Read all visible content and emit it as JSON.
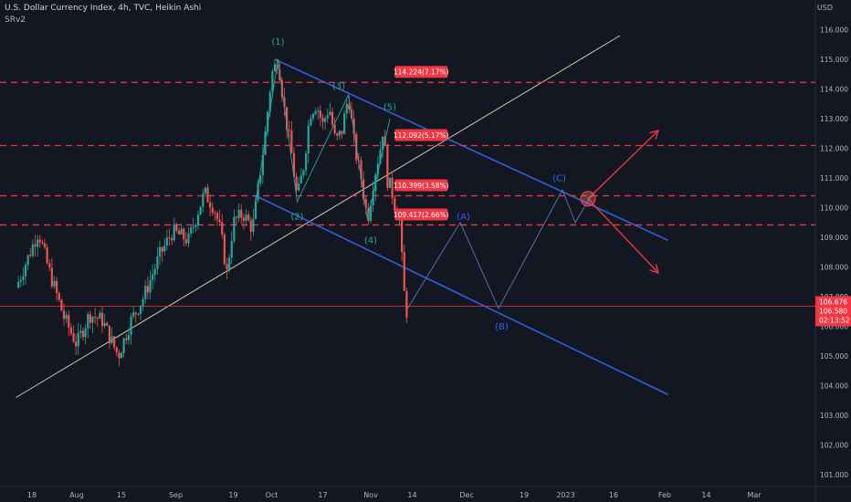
{
  "header": {
    "symbol_line": "U.S. Dollar Currency Index, 4h, TVC, Heikin Ashi",
    "indicator": "SRv2",
    "currency": "USD"
  },
  "chart_data": {
    "type": "candlestick",
    "y_range": [
      100.6,
      117.0
    ],
    "y_ticks": [
      101.0,
      102.0,
      103.0,
      104.0,
      105.0,
      106.0,
      107.0,
      108.0,
      109.0,
      110.0,
      111.0,
      112.0,
      113.0,
      114.0,
      115.0,
      116.0
    ],
    "y_tick_labels": [
      "101.000",
      "102.000",
      "103.000",
      "104.000",
      "105.000",
      "106.000",
      "107.000",
      "108.000",
      "109.000",
      "110.000",
      "111.000",
      "112.000",
      "113.000",
      "114.000",
      "115.000",
      "116.000"
    ],
    "x_ticks": [
      {
        "label": "18",
        "day": 0
      },
      {
        "label": "Aug",
        "day": 14
      },
      {
        "label": "15",
        "day": 28
      },
      {
        "label": "Sep",
        "day": 45
      },
      {
        "label": "19",
        "day": 63
      },
      {
        "label": "Oct",
        "day": 75
      },
      {
        "label": "17",
        "day": 91
      },
      {
        "label": "Nov",
        "day": 106
      },
      {
        "label": "14",
        "day": 119
      },
      {
        "label": "Dec",
        "day": 136
      },
      {
        "label": "19",
        "day": 154
      },
      {
        "label": "2023",
        "day": 167
      },
      {
        "label": "16",
        "day": 182
      },
      {
        "label": "Feb",
        "day": 198
      },
      {
        "label": "14",
        "day": 211
      },
      {
        "label": "Mar",
        "day": 226
      }
    ],
    "price_path": [
      {
        "day": -5,
        "price": 107.3
      },
      {
        "day": 2,
        "price": 109.2
      },
      {
        "day": 5,
        "price": 108.0
      },
      {
        "day": 10,
        "price": 106.3
      },
      {
        "day": 14,
        "price": 105.4
      },
      {
        "day": 18,
        "price": 106.4
      },
      {
        "day": 22,
        "price": 106.2
      },
      {
        "day": 27,
        "price": 105.0
      },
      {
        "day": 31,
        "price": 106.2
      },
      {
        "day": 35,
        "price": 107.0
      },
      {
        "day": 40,
        "price": 108.4
      },
      {
        "day": 44,
        "price": 109.2
      },
      {
        "day": 49,
        "price": 108.9
      },
      {
        "day": 52,
        "price": 109.9
      },
      {
        "day": 54,
        "price": 110.5
      },
      {
        "day": 57,
        "price": 110.0
      },
      {
        "day": 59,
        "price": 109.2
      },
      {
        "day": 61,
        "price": 107.8
      },
      {
        "day": 63,
        "price": 109.5
      },
      {
        "day": 66,
        "price": 109.8
      },
      {
        "day": 69,
        "price": 109.3
      },
      {
        "day": 71,
        "price": 110.8
      },
      {
        "day": 73,
        "price": 112.5
      },
      {
        "day": 75,
        "price": 114.5
      },
      {
        "day": 77,
        "price": 115.0
      },
      {
        "day": 79,
        "price": 113.3
      },
      {
        "day": 81,
        "price": 112.0
      },
      {
        "day": 83,
        "price": 110.3
      },
      {
        "day": 85,
        "price": 111.4
      },
      {
        "day": 87,
        "price": 113.2
      },
      {
        "day": 89,
        "price": 113.5
      },
      {
        "day": 91,
        "price": 112.8
      },
      {
        "day": 93,
        "price": 113.4
      },
      {
        "day": 95,
        "price": 112.2
      },
      {
        "day": 97,
        "price": 112.6
      },
      {
        "day": 99,
        "price": 113.8
      },
      {
        "day": 101,
        "price": 112.0
      },
      {
        "day": 103,
        "price": 111.0
      },
      {
        "day": 105,
        "price": 109.6
      },
      {
        "day": 107,
        "price": 111.0
      },
      {
        "day": 109,
        "price": 112.0
      },
      {
        "day": 110,
        "price": 112.8
      },
      {
        "day": 111,
        "price": 111.0
      },
      {
        "day": 112.5,
        "price": 110.6
      },
      {
        "day": 113.5,
        "price": 110.1
      },
      {
        "day": 115,
        "price": 109.6
      },
      {
        "day": 116,
        "price": 107.8
      },
      {
        "day": 117,
        "price": 106.4
      },
      {
        "day": 117.5,
        "price": 106.58
      }
    ],
    "levels": [
      {
        "price": 114.224,
        "label": "114.224(7.17%)"
      },
      {
        "price": 112.092,
        "label": "112.092(5.17%)"
      },
      {
        "price": 110.399,
        "label": "110.399(3.58%)"
      },
      {
        "price": 109.417,
        "label": "109.417(2.66%)"
      }
    ],
    "current_level": {
      "price": 106.676,
      "label": "106.676",
      "label2": "106.580",
      "timer": "02:13:52"
    },
    "ghost_tick_label": "107.000",
    "wave_labels": [
      {
        "text": "(1)",
        "day": 77,
        "price": 115.5,
        "color": "#26a69a"
      },
      {
        "text": "(2)",
        "day": 83,
        "price": 109.6,
        "color": "#26a69a"
      },
      {
        "text": "(3)",
        "day": 96,
        "price": 114.0,
        "color": "#26a69a"
      },
      {
        "text": "(4)",
        "day": 106,
        "price": 108.8,
        "color": "#26a69a"
      },
      {
        "text": "(5)",
        "day": 112,
        "price": 113.3,
        "color": "#26a69a"
      },
      {
        "text": "(A)",
        "day": 135,
        "price": 109.6,
        "color": "#2962ff"
      },
      {
        "text": "(B)",
        "day": 147,
        "price": 105.9,
        "color": "#2962ff"
      },
      {
        "text": "(C)",
        "day": 165,
        "price": 110.9,
        "color": "#2962ff"
      }
    ],
    "impulse_path": [
      {
        "day": 70,
        "price": 110.2
      },
      {
        "day": 77,
        "price": 115.0
      },
      {
        "day": 83,
        "price": 110.2
      },
      {
        "day": 99,
        "price": 113.8
      },
      {
        "day": 105,
        "price": 109.6
      },
      {
        "day": 112,
        "price": 113.0
      }
    ],
    "projection_path": [
      {
        "day": 117.5,
        "price": 106.6
      },
      {
        "day": 134,
        "price": 109.5
      },
      {
        "day": 146,
        "price": 106.6
      },
      {
        "day": 166,
        "price": 110.6
      },
      {
        "day": 170,
        "price": 109.5
      },
      {
        "day": 175,
        "price": 110.4
      }
    ],
    "channel_upper": [
      {
        "day": 76,
        "price": 115.0
      },
      {
        "day": 199,
        "price": 108.9
      }
    ],
    "channel_lower": [
      {
        "day": 70,
        "price": 110.4
      },
      {
        "day": 199,
        "price": 103.7
      }
    ],
    "trend_line": [
      {
        "day": -5,
        "price": 103.6
      },
      {
        "day": 184,
        "price": 115.8
      }
    ],
    "target_circle": {
      "day": 174,
      "price": 110.3
    },
    "arrows": [
      {
        "from": {
          "day": 174,
          "price": 110.3
        },
        "to": {
          "day": 196,
          "price": 112.6
        }
      },
      {
        "from": {
          "day": 174,
          "price": 110.3
        },
        "to": {
          "day": 196,
          "price": 107.8
        }
      }
    ]
  }
}
